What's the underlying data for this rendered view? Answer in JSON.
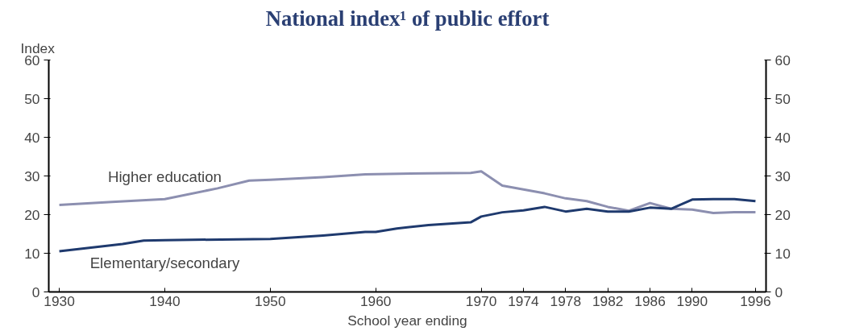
{
  "chart_data": {
    "type": "line",
    "title": "National index¹ of public effort",
    "ylabel": "Index",
    "xlabel": "School year ending",
    "xlim": [
      1929,
      1997
    ],
    "xticks": [
      1930,
      1940,
      1950,
      1960,
      1970,
      1974,
      1978,
      1982,
      1986,
      1990,
      1996
    ],
    "ylim": [
      0,
      60
    ],
    "yticks": [
      0,
      10,
      20,
      30,
      40,
      50,
      60
    ],
    "y2lim": [
      0,
      60
    ],
    "y2ticks": [
      0,
      10,
      20,
      30,
      40,
      50,
      60
    ],
    "grid": false,
    "marker": "none",
    "line_style": "solid",
    "series": [
      {
        "name": "Higher education",
        "color": "#8c8fb0",
        "x": [
          1930,
          1935,
          1940,
          1945,
          1948,
          1950,
          1955,
          1959,
          1965,
          1969,
          1970,
          1972,
          1974,
          1976,
          1978,
          1980,
          1982,
          1984,
          1986,
          1988,
          1990,
          1992,
          1994,
          1996
        ],
        "values": [
          22.5,
          23.3,
          24,
          26.8,
          28.8,
          29,
          29.7,
          30.4,
          30.7,
          30.8,
          31.2,
          27.5,
          26.5,
          25.5,
          24.2,
          23.5,
          22,
          21,
          23,
          21.5,
          21.3,
          20.4,
          20.6,
          20.6
        ]
      },
      {
        "name": "Elementary/secondary",
        "color": "#1f3a6e",
        "x": [
          1930,
          1936,
          1938,
          1940,
          1950,
          1955,
          1959,
          1960,
          1962,
          1965,
          1969,
          1970,
          1972,
          1974,
          1976,
          1978,
          1980,
          1982,
          1984,
          1986,
          1988,
          1990,
          1992,
          1994,
          1996
        ],
        "values": [
          10.5,
          12.4,
          13.3,
          13.4,
          13.7,
          14.6,
          15.5,
          15.5,
          16.4,
          17.3,
          18,
          19.5,
          20.6,
          21.1,
          22,
          20.8,
          21.5,
          20.8,
          20.8,
          21.8,
          21.5,
          23.9,
          24,
          24,
          23.5
        ]
      }
    ]
  }
}
